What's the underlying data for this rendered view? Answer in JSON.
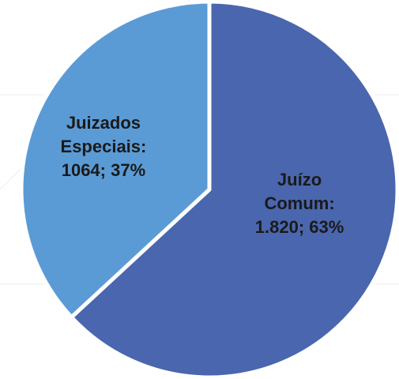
{
  "chart_data": {
    "type": "pie",
    "categories": [
      "Juízo Comum:",
      "Juizados Especiais:"
    ],
    "values": [
      1820,
      1064
    ],
    "value_labels": [
      "1.820; 63%",
      "1064; 37%"
    ],
    "colors": [
      "#4a66ae",
      "#5b9bd5"
    ]
  }
}
